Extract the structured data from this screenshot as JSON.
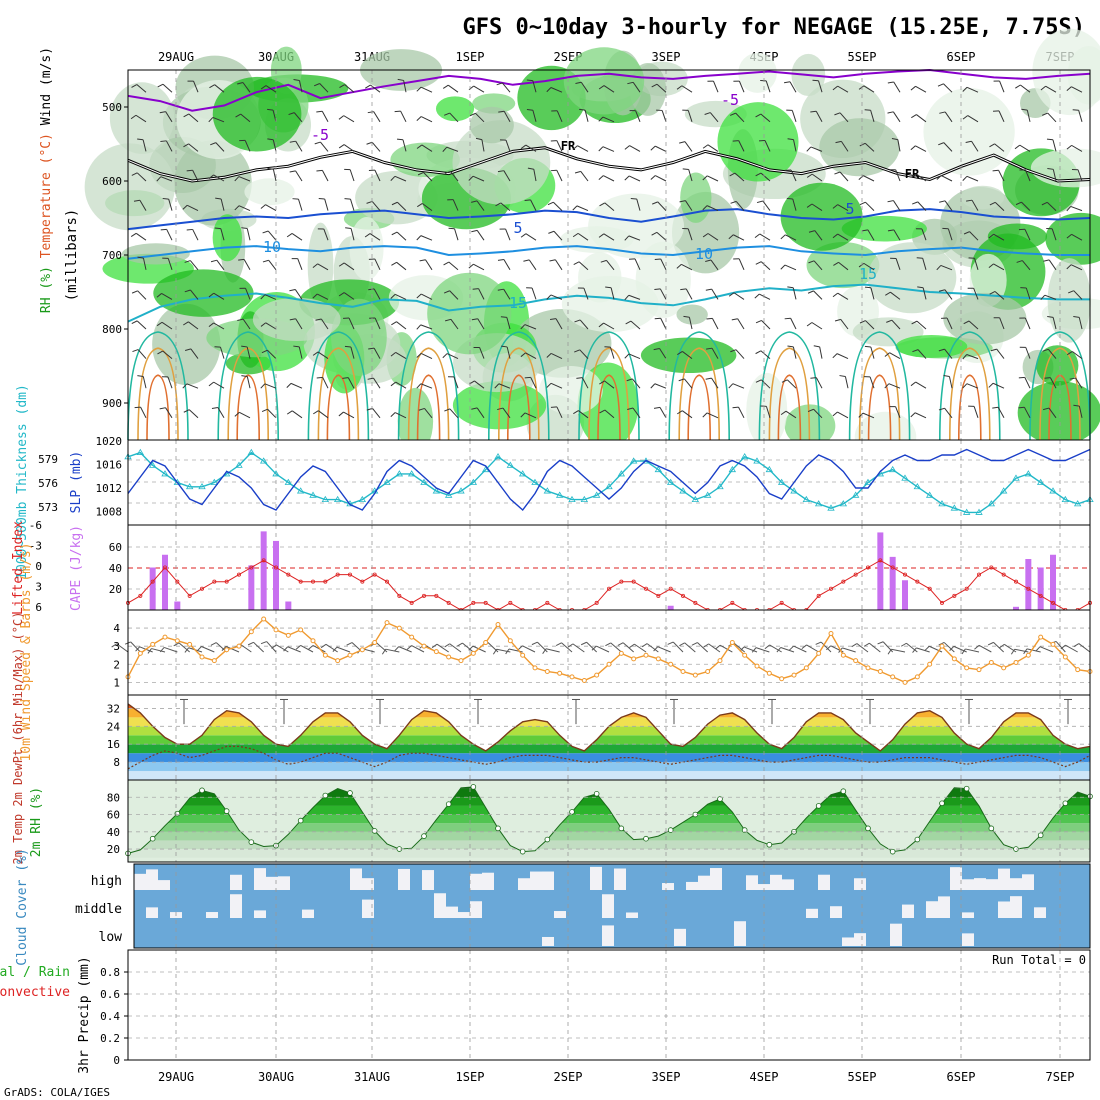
{
  "title": "GFS 0~10day 3-hourly for NEGAGE (15.25E, 7.75S)",
  "footer": "GrADS: COLA/IGES",
  "dates": [
    "29AUG",
    "30AUG",
    "31AUG",
    "1SEP",
    "2SEP",
    "3SEP",
    "4SEP",
    "5SEP",
    "6SEP",
    "7SEP"
  ],
  "colors": {
    "rh": "#3ed43e",
    "temp_5": "#8800cc",
    "temp_0": "#000000",
    "temp_pos": "#1a4fd1",
    "slp": "#1a3fc8",
    "thickness": "#22b8c8",
    "cape": "#c870f0",
    "li": "#dd2222",
    "wind": "#f09a30",
    "cloud": "#6aa8d8",
    "rain": "#22aa22",
    "convective": "#dd2222"
  },
  "chart_data": [
    {
      "panel": "upper-air",
      "type": "heatmap",
      "ylabel_parts": [
        "Wind (m/s)",
        "Temperature (°C)",
        "RH (%)"
      ],
      "axis_title": "(millibars)",
      "y_ticks": [
        "500",
        "600",
        "700",
        "800",
        "900"
      ],
      "ylim": [
        450,
        950
      ],
      "contour_labels": [
        "-5",
        "-5",
        "FR",
        "FR",
        "5",
        "5",
        "10",
        "10",
        "15",
        "15"
      ],
      "isotherms": [
        {
          "name": "-5",
          "values": [
            485,
            492,
            505,
            498,
            480,
            470,
            488,
            480,
            472,
            465,
            458,
            462,
            470,
            465,
            458,
            455,
            460,
            462,
            458,
            455,
            452,
            456,
            460,
            455,
            452,
            450,
            455,
            460,
            462,
            458,
            455
          ]
        },
        {
          "name": "FR",
          "values": [
            572,
            590,
            600,
            595,
            585,
            580,
            568,
            560,
            575,
            585,
            590,
            575,
            560,
            555,
            570,
            580,
            585,
            575,
            560,
            570,
            585,
            590,
            580,
            575,
            590,
            598,
            580,
            565,
            585,
            600,
            598
          ]
        },
        {
          "name": "5",
          "values": [
            665,
            660,
            655,
            650,
            648,
            650,
            645,
            642,
            640,
            645,
            650,
            648,
            645,
            640,
            642,
            650,
            655,
            648,
            640,
            638,
            645,
            650,
            652,
            648,
            640,
            638,
            642,
            648,
            650,
            652,
            650
          ]
        },
        {
          "name": "10",
          "values": [
            705,
            700,
            695,
            690,
            688,
            692,
            695,
            690,
            688,
            690,
            700,
            698,
            695,
            690,
            688,
            692,
            698,
            700,
            695,
            690,
            688,
            695,
            698,
            700,
            695,
            692,
            690,
            695,
            698,
            700,
            700
          ]
        },
        {
          "name": "15",
          "values": [
            790,
            770,
            760,
            755,
            752,
            758,
            765,
            770,
            760,
            762,
            775,
            770,
            768,
            760,
            755,
            758,
            765,
            768,
            760,
            750,
            745,
            748,
            742,
            740,
            745,
            750,
            752,
            755,
            758,
            760,
            760
          ]
        }
      ]
    },
    {
      "panel": "slp-thickness",
      "type": "line",
      "ylabel_left": "1000~500mb Thickness (dm)",
      "ylabel_right": "SLP (mb)",
      "y_ticks_left": [
        "579",
        "576",
        "573"
      ],
      "y_ticks_right": [
        "1020",
        "1016",
        "1012",
        "1008"
      ],
      "series": [
        {
          "name": "SLP (mb)",
          "ylim": [
            1006,
            1020
          ],
          "values": [
            1011,
            1014,
            1017,
            1016,
            1013,
            1010,
            1009,
            1012,
            1015,
            1014,
            1012,
            1009,
            1008,
            1011,
            1014,
            1016,
            1015,
            1012,
            1009,
            1008,
            1011,
            1015,
            1017,
            1016,
            1014,
            1012,
            1011,
            1014,
            1017,
            1016,
            1013,
            1010,
            1008,
            1011,
            1015,
            1017,
            1016,
            1014,
            1012,
            1010,
            1012,
            1015,
            1017,
            1016,
            1015,
            1013,
            1011,
            1013,
            1016,
            1017,
            1016,
            1014,
            1011,
            1010,
            1013,
            1016,
            1018,
            1017,
            1015,
            1012,
            1012,
            1015,
            1017,
            1018,
            1017,
            1017,
            1018,
            1018,
            1019,
            1018,
            1017,
            1017,
            1018,
            1019,
            1018,
            1017,
            1017,
            1018,
            1019
          ]
        },
        {
          "name": "1000~500mb Thickness (dm)",
          "ylim": [
            571.5,
            580.5
          ],
          "values": [
            579,
            579.5,
            578,
            577,
            576,
            575.5,
            575.5,
            576,
            577,
            578,
            579.5,
            578.5,
            577,
            576,
            575,
            574.5,
            574,
            574,
            573.5,
            574,
            575,
            576,
            577,
            577,
            576,
            575,
            574.5,
            575,
            576,
            577.5,
            579,
            578,
            577,
            576,
            575,
            574.5,
            574,
            574,
            574.5,
            575.5,
            577,
            578.5,
            578.5,
            577.5,
            576,
            575,
            574,
            574.5,
            575.5,
            577.5,
            579,
            578.5,
            577.5,
            576,
            575,
            574,
            573.5,
            573,
            573.5,
            574.5,
            576,
            577,
            577.5,
            576.5,
            575.5,
            574.5,
            573.5,
            573,
            572.5,
            572.5,
            573.5,
            575,
            576.5,
            577,
            576,
            575,
            574,
            573.5,
            574
          ]
        }
      ]
    },
    {
      "panel": "cape-li",
      "type": "bar",
      "ylabel_left": "Lifted Index",
      "ylabel_right": "CAPE (J/kg)",
      "y_ticks_left": [
        "-6",
        "-3",
        "0",
        "3",
        "6"
      ],
      "y_ticks_right": [
        "60",
        "40",
        "20"
      ],
      "series": [
        {
          "name": "CAPE (J/kg)",
          "ylim": [
            0,
            80
          ],
          "values": [
            0,
            0,
            40,
            52,
            8,
            0,
            0,
            0,
            0,
            0,
            42,
            74,
            65,
            8,
            0,
            0,
            0,
            0,
            0,
            0,
            0,
            0,
            0,
            0,
            0,
            0,
            0,
            0,
            0,
            0,
            0,
            0,
            0,
            0,
            0,
            0,
            0,
            0,
            0,
            0,
            0,
            0,
            0,
            0,
            4,
            0,
            0,
            0,
            0,
            0,
            0,
            0,
            0,
            0,
            0,
            0,
            0,
            0,
            0,
            0,
            0,
            73,
            50,
            28,
            0,
            0,
            0,
            0,
            0,
            0,
            0,
            0,
            3,
            48,
            40,
            52,
            0,
            0,
            0
          ]
        },
        {
          "name": "Lifted Index",
          "ylim": [
            6,
            -6
          ],
          "values": [
            5,
            4,
            2,
            0,
            2,
            4,
            3,
            2,
            2,
            1,
            0,
            -1,
            0,
            1,
            2,
            2,
            2,
            1,
            1,
            2,
            1,
            2,
            4,
            5,
            4,
            4,
            5,
            6,
            5,
            5,
            6,
            5,
            6,
            6,
            5,
            6,
            6,
            6,
            5,
            3,
            2,
            2,
            3,
            4,
            3,
            4,
            5,
            6,
            6,
            5,
            6,
            6,
            6,
            5,
            6,
            6,
            4,
            3,
            2,
            1,
            0,
            -1,
            0,
            1,
            2,
            3,
            5,
            4,
            3,
            1,
            0,
            1,
            2,
            3,
            4,
            5,
            6,
            6,
            5
          ]
        }
      ]
    },
    {
      "panel": "wind10m",
      "type": "line",
      "ylabel": "10m Wind Speed & Barbs (m/s)",
      "y_ticks": [
        "4",
        "3",
        "2",
        "1"
      ],
      "ylim": [
        0.3,
        5
      ],
      "series": [
        {
          "name": "10m Wind Speed",
          "values": [
            1.3,
            2.6,
            3.1,
            3.5,
            3.3,
            3.1,
            2.4,
            2.2,
            2.8,
            3.0,
            3.8,
            4.5,
            3.9,
            3.6,
            3.9,
            3.3,
            2.5,
            2.2,
            2.5,
            2.8,
            3.2,
            4.3,
            4.0,
            3.5,
            3.0,
            2.7,
            2.4,
            2.2,
            2.6,
            3.2,
            4.2,
            3.3,
            2.5,
            1.8,
            1.6,
            1.5,
            1.3,
            1.1,
            1.4,
            2.0,
            2.6,
            2.3,
            2.5,
            2.3,
            2.0,
            1.6,
            1.4,
            1.6,
            2.2,
            3.2,
            2.5,
            1.9,
            1.5,
            1.2,
            1.4,
            1.8,
            2.6,
            3.7,
            2.5,
            2.2,
            1.8,
            1.6,
            1.3,
            1.0,
            1.3,
            2.0,
            3.0,
            2.3,
            1.8,
            1.7,
            2.1,
            1.8,
            2.1,
            2.5,
            3.5,
            3.1,
            2.4,
            1.7,
            1.6
          ]
        }
      ]
    },
    {
      "panel": "temp2m",
      "type": "area",
      "ylabel": "2m Temp 2m DewPt (6hr Min/Max) (°C)",
      "y_ticks": [
        "32",
        "24",
        "16",
        "8"
      ],
      "ylim": [
        0,
        38
      ],
      "series": [
        {
          "name": "2m Temp",
          "values": [
            34,
            30,
            24,
            19,
            16,
            16,
            20,
            27,
            31,
            30,
            26,
            20,
            16,
            15,
            20,
            26,
            30,
            30,
            26,
            20,
            16,
            14,
            20,
            27,
            31,
            30,
            26,
            20,
            16,
            13,
            17,
            22,
            26,
            27,
            26,
            20,
            15,
            13,
            18,
            24,
            28,
            30,
            28,
            22,
            16,
            15,
            19,
            25,
            29,
            30,
            27,
            21,
            16,
            14,
            19,
            26,
            30,
            30,
            27,
            21,
            17,
            13,
            18,
            25,
            30,
            31,
            28,
            21,
            16,
            14,
            19,
            26,
            30,
            30,
            27,
            20,
            16,
            14,
            15
          ]
        },
        {
          "name": "2m DewPt",
          "values": [
            5,
            8,
            11,
            13,
            12,
            10,
            11,
            13,
            15,
            15,
            14,
            12,
            9,
            7,
            8,
            10,
            12,
            12,
            10,
            8,
            6,
            8,
            11,
            12,
            12,
            11,
            10,
            9,
            8,
            7,
            8,
            10,
            11,
            11,
            11,
            10,
            9,
            8,
            8,
            9,
            10,
            10,
            9,
            8,
            7,
            8,
            9,
            10,
            11,
            11,
            10,
            9,
            8,
            8,
            9,
            10,
            11,
            11,
            10,
            9,
            8,
            8,
            9,
            10,
            10,
            10,
            9,
            8,
            7,
            8,
            9,
            10,
            11,
            11,
            10,
            8,
            6,
            8,
            11
          ]
        }
      ]
    },
    {
      "panel": "rh2m",
      "type": "area",
      "ylabel": "2m RH (%)",
      "y_ticks": [
        "80",
        "60",
        "40",
        "20"
      ],
      "ylim": [
        5,
        100
      ],
      "series": [
        {
          "name": "2m RH",
          "values": [
            15,
            19,
            32,
            47,
            61,
            79,
            88,
            84,
            64,
            42,
            28,
            23,
            24,
            37,
            53,
            68,
            82,
            90,
            85,
            63,
            41,
            26,
            20,
            21,
            35,
            54,
            72,
            91,
            92,
            68,
            44,
            24,
            17,
            18,
            31,
            48,
            63,
            80,
            84,
            66,
            44,
            31,
            32,
            35,
            42,
            51,
            60,
            72,
            78,
            63,
            42,
            30,
            25,
            27,
            40,
            56,
            70,
            83,
            87,
            65,
            44,
            26,
            17,
            19,
            31,
            52,
            73,
            91,
            90,
            70,
            44,
            25,
            20,
            22,
            36,
            56,
            73,
            86,
            81
          ]
        }
      ]
    },
    {
      "panel": "cloud",
      "type": "heatmap",
      "ylabel": "Cloud Cover (%)",
      "levels": [
        "high",
        "middle",
        "low"
      ]
    },
    {
      "panel": "precip",
      "type": "bar",
      "ylabel_parts": [
        "3hr Precip (mm)",
        "Total / Rain",
        "Convective"
      ],
      "y_ticks": [
        "0.8",
        "0.6",
        "0.4",
        "0.2",
        "0"
      ],
      "ylim": [
        0,
        1
      ],
      "run_total": "Run Total = 0",
      "values": []
    }
  ]
}
